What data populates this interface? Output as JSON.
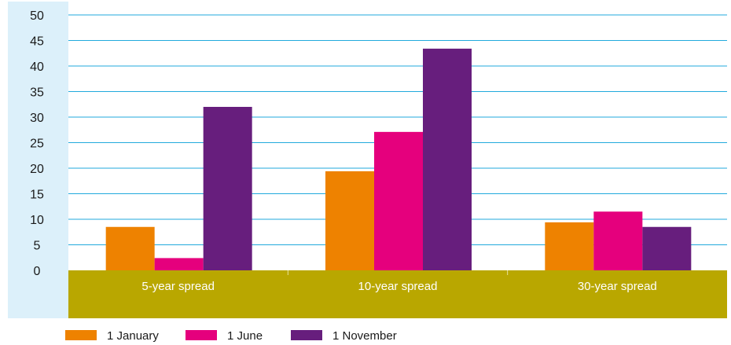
{
  "chart_data": {
    "type": "bar",
    "categories": [
      "5-year spread",
      "10-year spread",
      "30-year spread"
    ],
    "series": [
      {
        "name": "1 January",
        "color": "#ee8200",
        "values": [
          8.5,
          19.4,
          9.4
        ]
      },
      {
        "name": "1 June",
        "color": "#e5007d",
        "values": [
          2.4,
          27.1,
          11.5
        ]
      },
      {
        "name": "1 November",
        "color": "#671e7d",
        "values": [
          32.0,
          43.4,
          8.5
        ]
      }
    ],
    "ylim": [
      0,
      50
    ],
    "yticks": [
      0,
      5,
      10,
      15,
      20,
      25,
      30,
      35,
      40,
      45,
      50
    ],
    "grid": true,
    "legend_position": "bottom",
    "colors": {
      "y_axis_band": "#dcf0fa",
      "category_band": "#b9a700",
      "gridline": "#22aadd"
    }
  }
}
